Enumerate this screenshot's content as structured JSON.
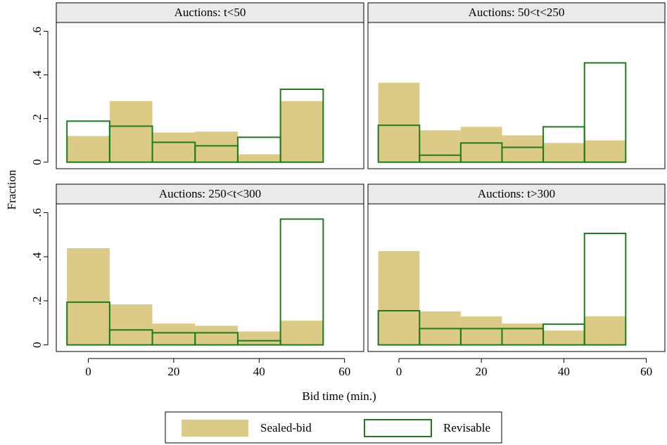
{
  "chart_data": {
    "type": "histogram",
    "xlabel": "Bid time (min.)",
    "ylabel": "Fraction",
    "bins": [
      -5,
      5,
      15,
      25,
      35,
      45,
      55
    ],
    "xlim": [
      -7.5,
      64.5
    ],
    "xticks": [
      0,
      20,
      40,
      60
    ],
    "ylim": [
      -0.03,
      0.64
    ],
    "yticks": [
      0,
      {
        "value": 0.2,
        "label": ".2"
      },
      {
        "value": 0.4,
        "label": ".4"
      },
      {
        "value": 0.6,
        "label": ".6"
      }
    ],
    "series": [
      {
        "name": "Sealed-bid",
        "color": "#dccb87",
        "fill": true
      },
      {
        "name": "Revisable",
        "color": "#1e7b1e",
        "fill": false
      }
    ],
    "panels": [
      {
        "title": "Auctions: t<50",
        "series": [
          {
            "values": [
              0.12,
              0.28,
              0.136,
              0.14,
              0.036,
              0.28
            ]
          },
          {
            "values": [
              0.188,
              0.165,
              0.091,
              0.075,
              0.114,
              0.334
            ]
          }
        ]
      },
      {
        "title": "Auctions: 50<t<250",
        "series": [
          {
            "values": [
              0.364,
              0.146,
              0.162,
              0.123,
              0.088,
              0.1
            ]
          },
          {
            "values": [
              0.169,
              0.032,
              0.088,
              0.068,
              0.162,
              0.455
            ]
          }
        ]
      },
      {
        "title": "Auctions: 250<t<300",
        "series": [
          {
            "values": [
              0.439,
              0.184,
              0.097,
              0.087,
              0.061,
              0.11
            ]
          },
          {
            "values": [
              0.194,
              0.068,
              0.055,
              0.055,
              0.019,
              0.571
            ]
          }
        ]
      },
      {
        "title": "Auctions: t>300",
        "series": [
          {
            "values": [
              0.426,
              0.152,
              0.129,
              0.097,
              0.065,
              0.13
            ]
          },
          {
            "values": [
              0.155,
              0.074,
              0.074,
              0.074,
              0.094,
              0.506
            ]
          }
        ]
      }
    ]
  }
}
